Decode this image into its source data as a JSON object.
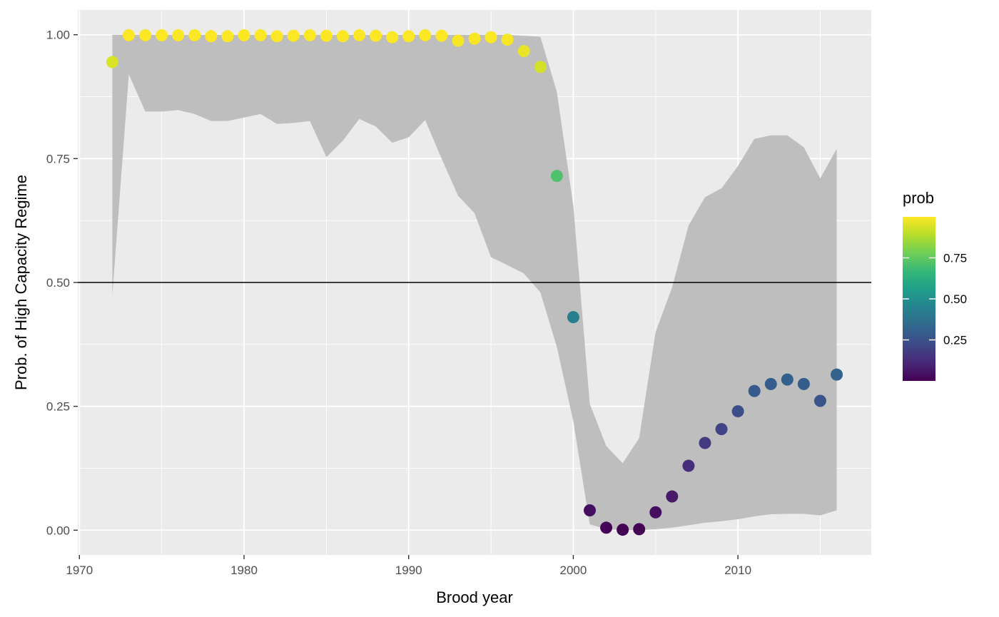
{
  "chart_data": {
    "type": "scatter",
    "xlabel": "Brood year",
    "ylabel": "Prob. of High Capacity Regime",
    "xlim": [
      1969.9,
      2018.1
    ],
    "ylim": [
      -0.05,
      1.05
    ],
    "x_ticks": [
      1970,
      1980,
      1990,
      2000,
      2010
    ],
    "x_tick_labels": [
      "1970",
      "1980",
      "1990",
      "2000",
      "2010"
    ],
    "y_ticks": [
      0,
      0.25,
      0.5,
      0.75,
      1.0
    ],
    "y_tick_labels": [
      "0.00",
      "0.25",
      "0.50",
      "0.75",
      "1.00"
    ],
    "hline": 0.5,
    "grid": true,
    "legend": {
      "title": "prob",
      "placement": "right",
      "ticks": [
        0.25,
        0.5,
        0.75
      ],
      "tick_labels": [
        "0.25",
        "0.50",
        "0.75"
      ],
      "range": [
        0.0,
        1.0
      ]
    },
    "colors": {
      "panel": "#ebebeb",
      "grid": "#ffffff",
      "ribbon": "#bebebe",
      "hline": "#000000",
      "viridis": [
        "#440154",
        "#482878",
        "#3e4989",
        "#31688e",
        "#26828e",
        "#1f9e89",
        "#35b779",
        "#6ece58",
        "#b5de2b",
        "#fde725"
      ]
    },
    "series": [
      {
        "x": [
          1972,
          1973,
          1974,
          1975,
          1976,
          1977,
          1978,
          1979,
          1980,
          1981,
          1982,
          1983,
          1984,
          1985,
          1986,
          1987,
          1988,
          1989,
          1990,
          1991,
          1992,
          1993,
          1994,
          1995,
          1996,
          1997,
          1998,
          1999,
          2000,
          2001,
          2002,
          2003,
          2004,
          2005,
          2006,
          2007,
          2008,
          2009,
          2010,
          2011,
          2012,
          2013,
          2014,
          2015,
          2016
        ],
        "y": [
          0.945,
          0.999,
          0.999,
          0.999,
          0.999,
          0.999,
          0.997,
          0.997,
          0.999,
          0.999,
          0.997,
          0.998,
          0.999,
          0.998,
          0.997,
          0.999,
          0.998,
          0.995,
          0.997,
          0.999,
          0.998,
          0.988,
          0.992,
          0.995,
          0.99,
          0.967,
          0.935,
          0.715,
          0.43,
          0.04,
          0.005,
          0.001,
          0.002,
          0.036,
          0.068,
          0.13,
          0.176,
          0.204,
          0.24,
          0.281,
          0.295,
          0.304,
          0.295,
          0.261,
          0.314
        ],
        "lower": [
          0.475,
          0.92,
          0.845,
          0.845,
          0.848,
          0.84,
          0.826,
          0.826,
          0.833,
          0.84,
          0.82,
          0.822,
          0.826,
          0.753,
          0.786,
          0.83,
          0.815,
          0.782,
          0.793,
          0.828,
          0.75,
          0.675,
          0.64,
          0.551,
          0.535,
          0.518,
          0.48,
          0.37,
          0.22,
          0.012,
          0.002,
          0.0,
          0.0,
          0.002,
          0.005,
          0.01,
          0.015,
          0.018,
          0.022,
          0.028,
          0.032,
          0.033,
          0.033,
          0.03,
          0.04
        ],
        "upper": [
          1.0,
          1.0,
          1.0,
          1.0,
          1.0,
          1.0,
          1.0,
          1.0,
          1.0,
          1.0,
          1.0,
          1.0,
          1.0,
          1.0,
          1.0,
          1.0,
          1.0,
          1.0,
          1.0,
          1.0,
          1.0,
          1.0,
          1.0,
          1.0,
          1.0,
          0.998,
          0.996,
          0.885,
          0.655,
          0.255,
          0.17,
          0.135,
          0.186,
          0.4,
          0.49,
          0.615,
          0.672,
          0.69,
          0.735,
          0.79,
          0.797,
          0.797,
          0.773,
          0.71,
          0.77
        ]
      }
    ]
  }
}
